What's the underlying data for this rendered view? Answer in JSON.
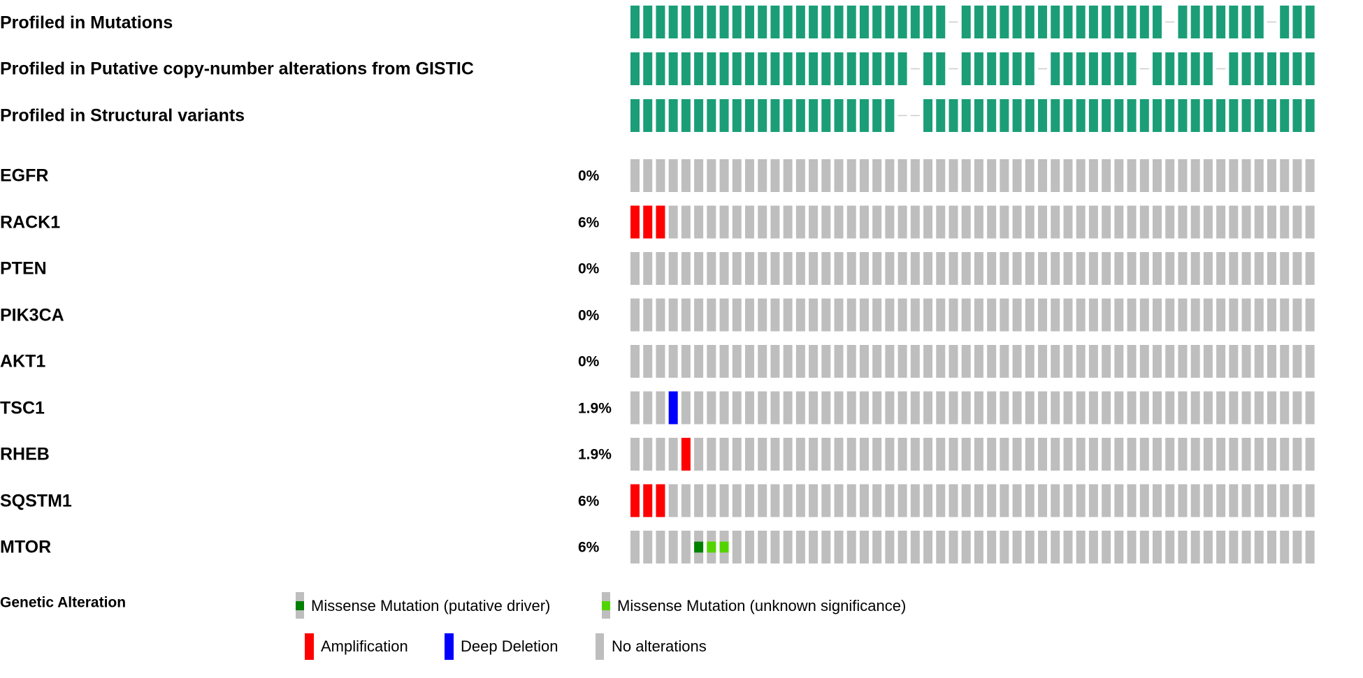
{
  "colors": {
    "profiled": "#1b9e77",
    "not_profiled_line": "#cccccc",
    "no_alteration": "#bebebe",
    "amplification": "#ff0000",
    "deep_deletion": "#0000ff",
    "missense_driver": "#008000",
    "missense_unknown": "#53d400"
  },
  "chart_data": {
    "type": "oncoprint",
    "sample_count": 54,
    "profile_tracks": [
      {
        "label": "Profiled in Mutations",
        "not_profiled_samples": [
          25,
          42,
          50
        ]
      },
      {
        "label": "Profiled in Putative copy-number alterations from GISTIC",
        "not_profiled_samples": [
          22,
          25,
          32,
          40,
          46
        ]
      },
      {
        "label": "Profiled in Structural variants",
        "not_profiled_samples": [
          21,
          22
        ]
      }
    ],
    "gene_tracks": [
      {
        "gene": "EGFR",
        "percent": "0%",
        "alterations": []
      },
      {
        "gene": "RACK1",
        "percent": "6%",
        "alterations": [
          {
            "sample": 0,
            "type": "amplification"
          },
          {
            "sample": 1,
            "type": "amplification"
          },
          {
            "sample": 2,
            "type": "amplification"
          }
        ]
      },
      {
        "gene": "PTEN",
        "percent": "0%",
        "alterations": []
      },
      {
        "gene": "PIK3CA",
        "percent": "0%",
        "alterations": []
      },
      {
        "gene": "AKT1",
        "percent": "0%",
        "alterations": []
      },
      {
        "gene": "TSC1",
        "percent": "1.9%",
        "alterations": [
          {
            "sample": 3,
            "type": "deep_deletion"
          }
        ]
      },
      {
        "gene": "RHEB",
        "percent": "1.9%",
        "alterations": [
          {
            "sample": 4,
            "type": "amplification"
          }
        ]
      },
      {
        "gene": "SQSTM1",
        "percent": "6%",
        "alterations": [
          {
            "sample": 0,
            "type": "amplification"
          },
          {
            "sample": 1,
            "type": "amplification"
          },
          {
            "sample": 2,
            "type": "amplification"
          }
        ]
      },
      {
        "gene": "MTOR",
        "percent": "6%",
        "alterations": [
          {
            "sample": 5,
            "type": "missense_driver"
          },
          {
            "sample": 6,
            "type": "missense_unknown"
          },
          {
            "sample": 7,
            "type": "missense_unknown"
          }
        ]
      }
    ],
    "legend": {
      "title": "Genetic Alteration",
      "items": [
        {
          "type": "missense_driver",
          "label": "Missense Mutation (putative driver)"
        },
        {
          "type": "missense_unknown",
          "label": "Missense Mutation (unknown significance)"
        },
        {
          "type": "amplification",
          "label": "Amplification"
        },
        {
          "type": "deep_deletion",
          "label": "Deep Deletion"
        },
        {
          "type": "no_alteration",
          "label": "No alterations"
        }
      ]
    }
  }
}
